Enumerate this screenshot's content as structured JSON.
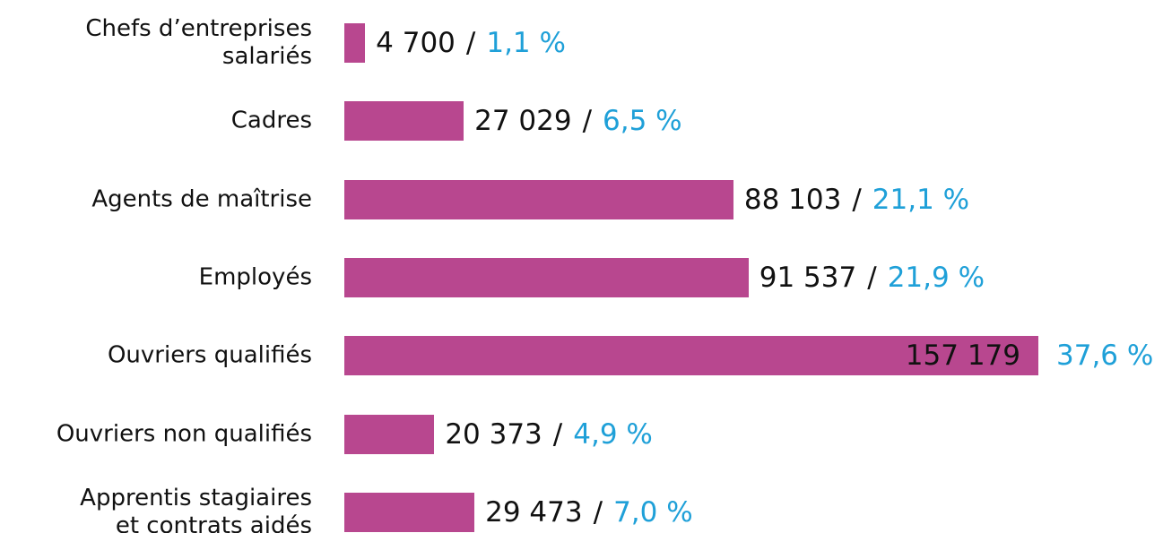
{
  "chart_data": {
    "type": "hbar",
    "categories": [
      "Chefs d’entreprises\nsalariés",
      "Cadres",
      "Agents de maîtrise",
      "Employés",
      "Ouvriers qualifiés",
      "Ouvriers non qualifiés",
      "Apprentis stagiaires\net contrats aidés"
    ],
    "values": [
      4700,
      27029,
      88103,
      91537,
      157179,
      20373,
      29473
    ],
    "value_labels": [
      "4 700",
      "27 029",
      "88 103",
      "91 537",
      "157 179",
      "20 373",
      "29 473"
    ],
    "shares": [
      1.1,
      6.5,
      21.1,
      21.9,
      37.6,
      4.9,
      7.0
    ],
    "share_labels": [
      "1,1 %",
      "6,5 %",
      "21,1 %",
      "21,9 %",
      "37,6 %",
      "4,9 %",
      "7,0 %"
    ],
    "separator": "/",
    "color": "#b8478f",
    "share_color": "#1fa0d8"
  }
}
